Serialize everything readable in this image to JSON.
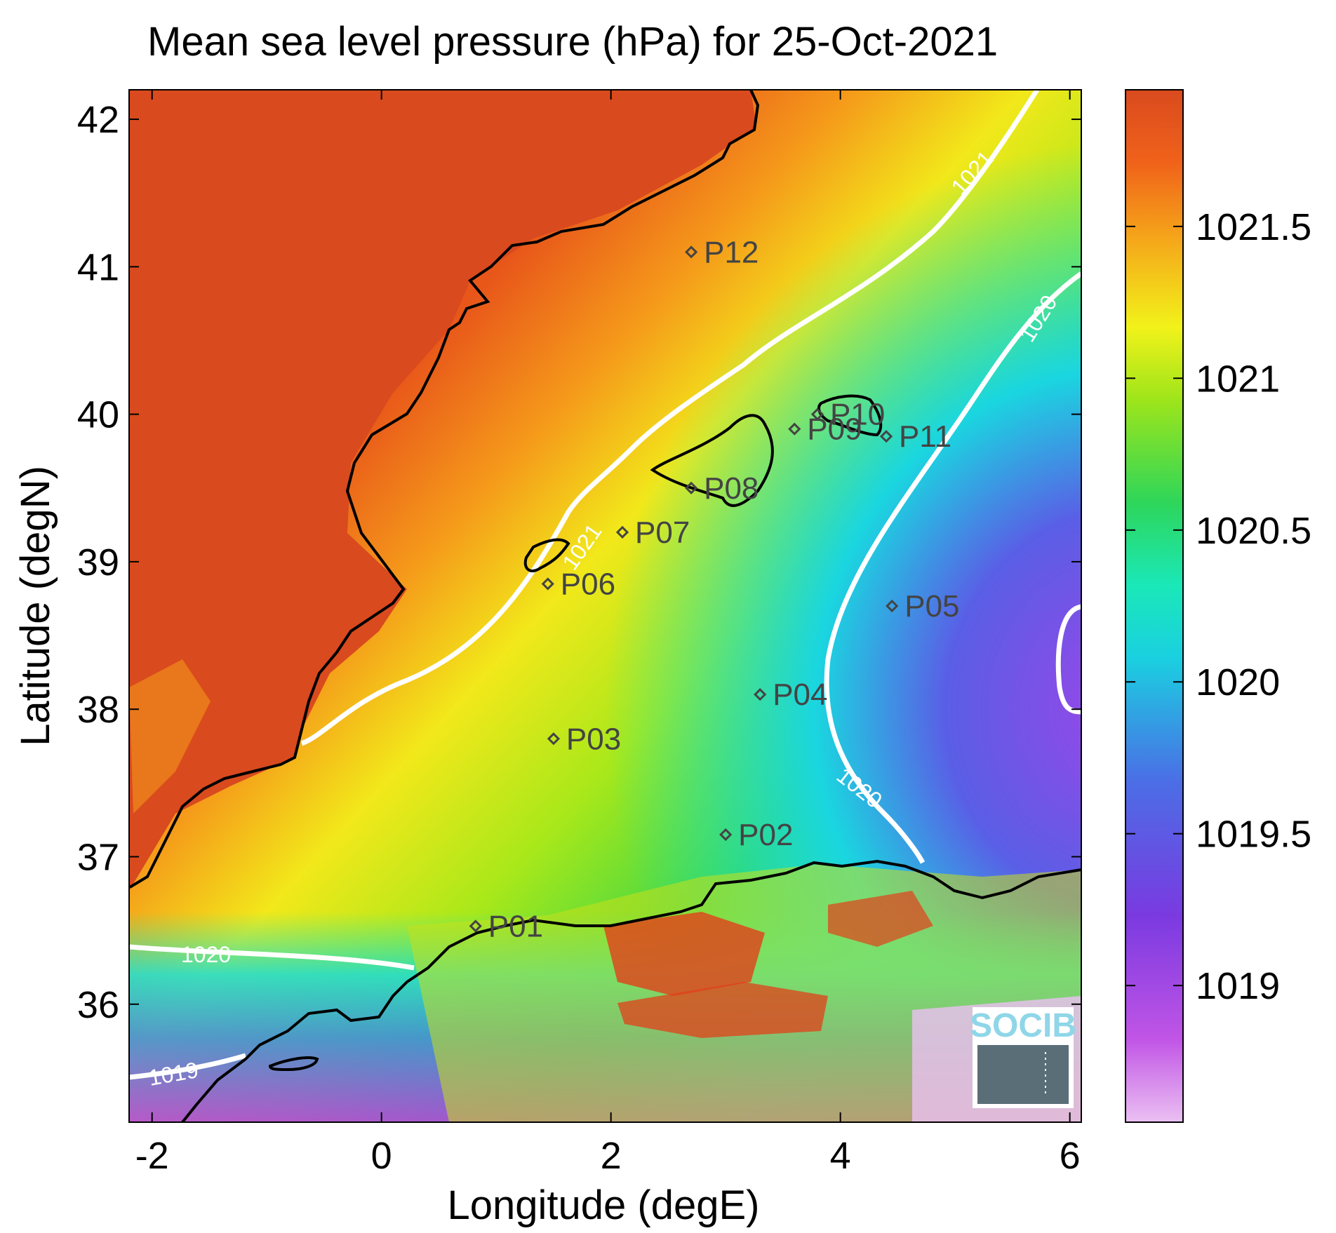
{
  "title": "Mean sea level pressure (hPa) for 25-Oct-2021",
  "axes": {
    "xlabel": "Longitude (degE)",
    "ylabel": "Latitude (degN)",
    "xlim": [
      -2.2,
      6.1
    ],
    "ylim": [
      35.2,
      42.2
    ],
    "xticks": [
      "-2",
      "0",
      "2",
      "4",
      "6"
    ],
    "yticks": [
      "36",
      "37",
      "38",
      "39",
      "40",
      "41",
      "42"
    ]
  },
  "colorbar": {
    "range": [
      1018.55,
      1021.95
    ],
    "ticks": [
      "1019",
      "1019.5",
      "1020",
      "1020.5",
      "1021",
      "1021.5"
    ]
  },
  "contours": {
    "label_1021": "1021",
    "label_1020": "1020",
    "label_1019": "1019"
  },
  "points": [
    {
      "name": "P01",
      "lon": 0.82,
      "lat": 36.53
    },
    {
      "name": "P02",
      "lon": 3.0,
      "lat": 37.15
    },
    {
      "name": "P03",
      "lon": 1.5,
      "lat": 37.8
    },
    {
      "name": "P04",
      "lon": 3.3,
      "lat": 38.1
    },
    {
      "name": "P05",
      "lon": 4.45,
      "lat": 38.7
    },
    {
      "name": "P06",
      "lon": 1.45,
      "lat": 38.85
    },
    {
      "name": "P07",
      "lon": 2.1,
      "lat": 39.2
    },
    {
      "name": "P08",
      "lon": 2.7,
      "lat": 39.5
    },
    {
      "name": "P09",
      "lon": 3.6,
      "lat": 39.9
    },
    {
      "name": "P10",
      "lon": 3.8,
      "lat": 40.0
    },
    {
      "name": "P11",
      "lon": 4.4,
      "lat": 39.85
    },
    {
      "name": "P12",
      "lon": 2.7,
      "lat": 41.1
    }
  ],
  "logo": {
    "text": "SOCIB"
  },
  "colors": {
    "high": "#d94a1e",
    "orange": "#f07a1a",
    "yellow": "#f2f21a",
    "green": "#2fd22f",
    "cyan": "#1ae8d6",
    "blue": "#3a8ae6",
    "purple": "#7a3ae0",
    "pink": "#e9b4f0",
    "coast": "#000000",
    "contour": "#ffffff"
  }
}
